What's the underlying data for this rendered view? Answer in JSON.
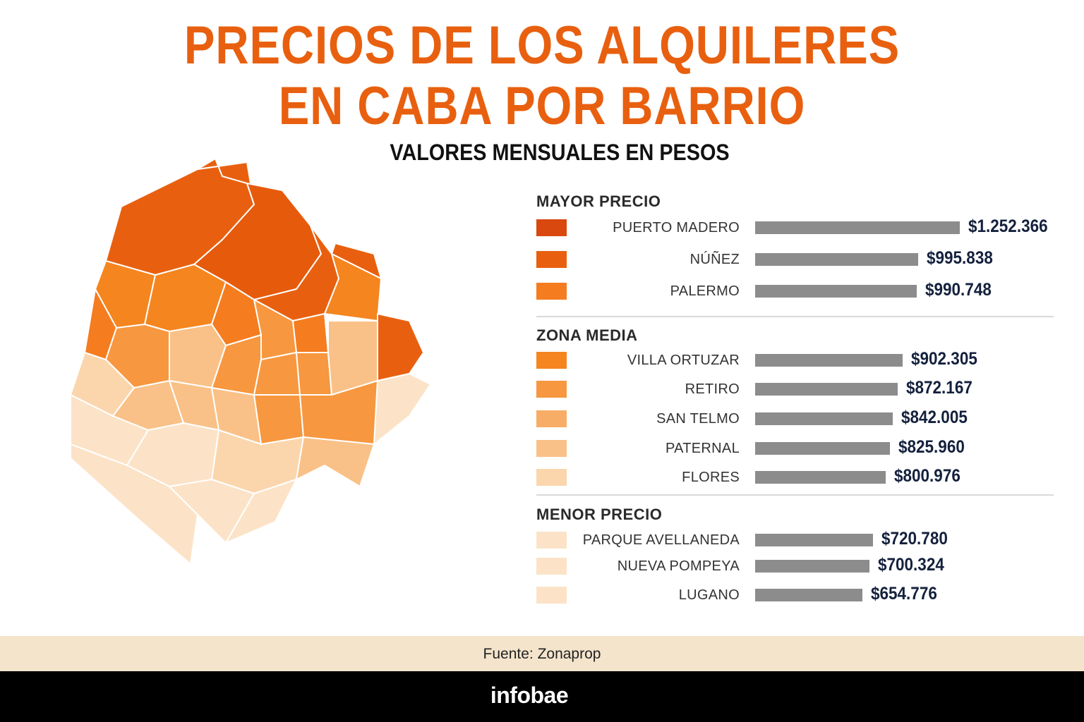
{
  "title_line1": "PRECIOS DE LOS ALQUILERES",
  "title_line2": "EN CABA POR BARRIO",
  "subtitle": "VALORES MENSUALES EN PESOS",
  "source": "Fuente: Zonaprop",
  "brand": "infobae",
  "colors": {
    "title": "#e8600f",
    "bar": "#8c8c8c",
    "value_text": "#14213d",
    "source_band": "#f4e4cc",
    "footer": "#000000"
  },
  "chart_data": {
    "type": "bar",
    "orientation": "horizontal",
    "title": "PRECIOS DE LOS ALQUILERES EN CABA POR BARRIO",
    "subtitle": "VALORES MENSUALES EN PESOS",
    "groups": [
      {
        "name": "MAYOR PRECIO",
        "items": [
          {
            "label": "PUERTO MADERO",
            "value": 1252366,
            "display": "$1.252.366",
            "color": "#d9480f"
          },
          {
            "label": "NÚÑEZ",
            "value": 995838,
            "display": "$995.838",
            "color": "#e8600f"
          },
          {
            "label": "PALERMO",
            "value": 990748,
            "display": "$990.748",
            "color": "#f57c1f"
          }
        ]
      },
      {
        "name": "ZONA MEDIA",
        "items": [
          {
            "label": "VILLA ORTUZAR",
            "value": 902305,
            "display": "$902.305",
            "color": "#f5851f"
          },
          {
            "label": "RETIRO",
            "value": 872167,
            "display": "$872.167",
            "color": "#f7973f"
          },
          {
            "label": "SAN TELMO",
            "value": 842005,
            "display": "$842.005",
            "color": "#f8ad66"
          },
          {
            "label": "PATERNAL",
            "value": 825960,
            "display": "$825.960",
            "color": "#f9c187"
          },
          {
            "label": "FLORES",
            "value": 800976,
            "display": "$800.976",
            "color": "#fbd6ad"
          }
        ]
      },
      {
        "name": "MENOR PRECIO",
        "items": [
          {
            "label": "PARQUE AVELLANEDA",
            "value": 720780,
            "display": "$720.780",
            "color": "#fce3c7"
          },
          {
            "label": "NUEVA POMPEYA",
            "value": 700324,
            "display": "$700.324",
            "color": "#fce3c7"
          },
          {
            "label": "LUGANO",
            "value": 654776,
            "display": "$654.776",
            "color": "#fce3c7"
          }
        ]
      }
    ]
  }
}
